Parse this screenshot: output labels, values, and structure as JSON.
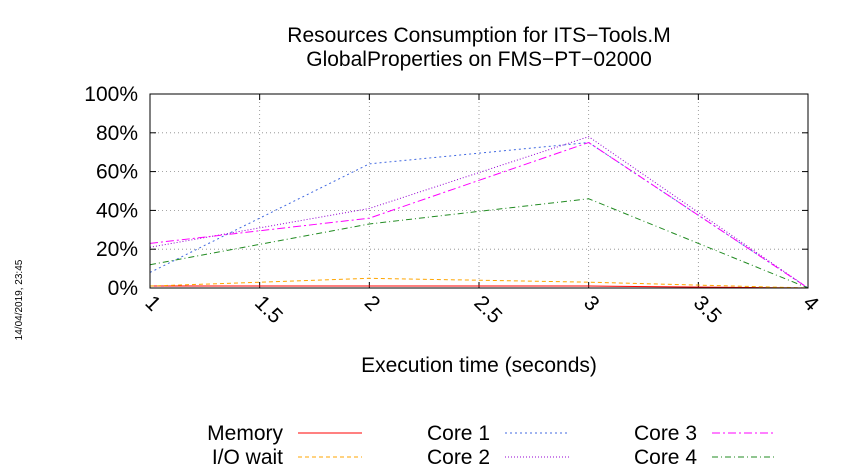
{
  "chart_data": {
    "type": "line",
    "title": [
      "Resources Consumption for ITS−Tools.M",
      "GlobalProperties on FMS−PT−02000"
    ],
    "xlabel": "Execution time (seconds)",
    "ylabel": "",
    "xlim": [
      1,
      4
    ],
    "ylim": [
      0,
      100
    ],
    "x_ticks": [
      {
        "v": 1,
        "label": "1"
      },
      {
        "v": 1.5,
        "label": "1.5"
      },
      {
        "v": 2,
        "label": "2"
      },
      {
        "v": 2.5,
        "label": "2.5"
      },
      {
        "v": 3,
        "label": "3"
      },
      {
        "v": 3.5,
        "label": "3.5"
      },
      {
        "v": 4,
        "label": "4"
      }
    ],
    "y_ticks": [
      {
        "v": 0,
        "label": "0%"
      },
      {
        "v": 20,
        "label": "20%"
      },
      {
        "v": 40,
        "label": "40%"
      },
      {
        "v": 60,
        "label": "60%"
      },
      {
        "v": 80,
        "label": "80%"
      },
      {
        "v": 100,
        "label": "100%"
      }
    ],
    "grid": true,
    "legend_position": "bottom",
    "timestamp": "14/04/2019, 23:45",
    "series": [
      {
        "name": "Memory",
        "color": "#ff0000",
        "dash": "",
        "x": [
          1,
          2,
          3,
          4
        ],
        "values": [
          1,
          1,
          1,
          0
        ]
      },
      {
        "name": "I/O wait",
        "color": "#ffa500",
        "dash": "4,3",
        "x": [
          1,
          2,
          3,
          4
        ],
        "values": [
          1,
          5,
          3,
          0
        ]
      },
      {
        "name": "Core 1",
        "color": "#4169e1",
        "dash": "2,3",
        "x": [
          1,
          2,
          3,
          4
        ],
        "values": [
          8,
          64,
          75,
          0
        ]
      },
      {
        "name": "Core 2",
        "color": "#9400d3",
        "dash": "1,2",
        "x": [
          1,
          2,
          3,
          4
        ],
        "values": [
          21,
          41,
          78,
          0
        ]
      },
      {
        "name": "Core 3",
        "color": "#ff00ff",
        "dash": "8,3,2,3",
        "x": [
          1,
          2,
          3,
          4
        ],
        "values": [
          23,
          36,
          75,
          0
        ]
      },
      {
        "name": "Core 4",
        "color": "#228b22",
        "dash": "6,3,1,3",
        "x": [
          1,
          2,
          3,
          4
        ],
        "values": [
          12,
          33,
          46,
          0
        ]
      }
    ]
  }
}
